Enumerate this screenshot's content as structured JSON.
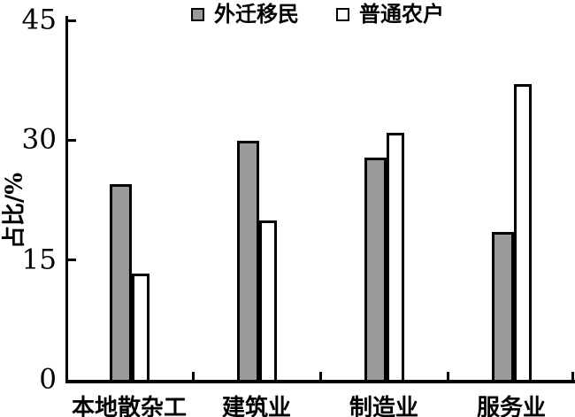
{
  "chart_data": {
    "type": "bar",
    "title": "",
    "categories": [
      "本地散杂工",
      "建筑业",
      "制造业",
      "服务业"
    ],
    "series": [
      {
        "name": "外迁移民",
        "fill": "#9a9a9a",
        "values": [
          24.5,
          29.9,
          27.8,
          18.5
        ]
      },
      {
        "name": "普通农户",
        "fill": "#ffffff",
        "values": [
          13.3,
          20.0,
          30.9,
          37.0
        ]
      }
    ],
    "xlabel": "",
    "ylabel": "占比/%",
    "ylim": [
      0,
      45
    ],
    "yticks": [
      0,
      15,
      30,
      45
    ],
    "grid": false,
    "legend_position": "top"
  },
  "colors": {
    "axis": "#000000",
    "bar_border": "#000000",
    "series1_fill": "#9a9a9a",
    "series2_fill": "#ffffff",
    "background": "#ffffff"
  }
}
